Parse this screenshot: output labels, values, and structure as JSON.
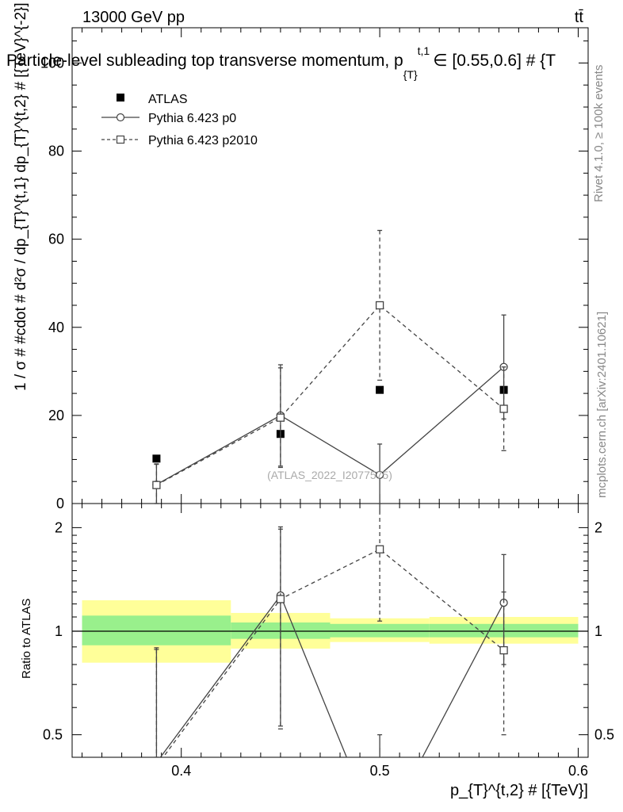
{
  "header": {
    "left_label": "13000 GeV pp",
    "right_label": "tt̄",
    "title": "Particle-level subleading top transverse momentum, p",
    "title_sub": "{T}",
    "title_sup": "t,1",
    "title_tail": "∈ [0.55,0.6] # {T",
    "side_label_top": "Rivet 4.1.0, ≥ 100k events",
    "side_label_bottom": "mcplots.cern.ch [arXiv:2401.10621]",
    "watermark": "(ATLAS_2022_I2077575)"
  },
  "chart_data": [
    {
      "type": "line",
      "panel": "main",
      "ylabel": "1 / σ # #cdot # d²σ / dp_{T}^{t,1} dp_{T}^{t,2} # [{TeV}^{-2}]",
      "ylim": [
        0,
        108
      ],
      "xlim": [
        0.345,
        0.605
      ],
      "yticks": [
        0,
        20,
        40,
        60,
        80,
        100
      ],
      "yticklabels": [
        "0",
        "20",
        "40",
        "60",
        "80",
        "100"
      ],
      "legend": [
        {
          "name": "ATLAS",
          "marker": "filled-square",
          "line": "none"
        },
        {
          "name": "Pythia 6.423 p0",
          "marker": "open-circle",
          "line": "solid"
        },
        {
          "name": "Pythia 6.423 p2010",
          "marker": "open-square",
          "line": "dashed"
        }
      ],
      "series": [
        {
          "name": "ATLAS",
          "x": [
            0.3875,
            0.45,
            0.5,
            0.5625
          ],
          "y": [
            10.2,
            15.8,
            25.8,
            25.8
          ],
          "xerr": [
            0.0375,
            0.025,
            0.025,
            0.0375
          ],
          "yerr": [
            0,
            0,
            0,
            0
          ]
        },
        {
          "name": "Pythia 6.423 p0",
          "x": [
            0.3875,
            0.45,
            0.5,
            0.5625
          ],
          "y": [
            4.3,
            20.0,
            6.5,
            31.0
          ],
          "yerr_lo": [
            4.3,
            11.5,
            6.5,
            11.8
          ],
          "yerr_hi": [
            4.7,
            11.5,
            7.0,
            11.8
          ]
        },
        {
          "name": "Pythia 6.423 p2010",
          "x": [
            0.3875,
            0.45,
            0.5,
            0.5625
          ],
          "y": [
            4.2,
            19.5,
            45.0,
            21.5
          ],
          "yerr_lo": [
            4.2,
            11.3,
            17.0,
            9.5
          ],
          "yerr_hi": [
            4.7,
            11.3,
            17.0,
            9.5
          ]
        }
      ]
    },
    {
      "type": "line",
      "panel": "ratio",
      "ylabel": "Ratio to ATLAS",
      "xlabel": "p_{T}^{t,2} # [{TeV}]",
      "yscale": "log",
      "ylim": [
        0.43,
        2.35
      ],
      "xlim": [
        0.345,
        0.605
      ],
      "xticks": [
        0.4,
        0.5,
        0.6
      ],
      "xticklabels": [
        "0.4",
        "0.5",
        "0.6"
      ],
      "yticks": [
        0.5,
        1,
        2
      ],
      "yticklabels": [
        "0.5",
        "1",
        "2"
      ],
      "bands": [
        {
          "x_lo": 0.35,
          "x_hi": 0.425,
          "inner": [
            0.91,
            1.11
          ],
          "outer": [
            0.81,
            1.23
          ]
        },
        {
          "x_lo": 0.425,
          "x_hi": 0.475,
          "inner": [
            0.95,
            1.06
          ],
          "outer": [
            0.89,
            1.13
          ]
        },
        {
          "x_lo": 0.475,
          "x_hi": 0.525,
          "inner": [
            0.96,
            1.05
          ],
          "outer": [
            0.93,
            1.09
          ]
        },
        {
          "x_lo": 0.525,
          "x_hi": 0.6,
          "inner": [
            0.96,
            1.05
          ],
          "outer": [
            0.92,
            1.1
          ]
        }
      ],
      "band_colors": {
        "inner": "#99f08c",
        "outer": "#ffff99"
      },
      "series": [
        {
          "name": "Pythia 6.423 p0",
          "x": [
            0.3875,
            0.45,
            0.5,
            0.5625
          ],
          "y": [
            0.415,
            1.27,
            0.25,
            1.21
          ],
          "yerr_lo": [
            0.4,
            0.74,
            0.25,
            0.41
          ],
          "yerr_hi": [
            0.48,
            0.74,
            0.25,
            0.46
          ]
        },
        {
          "name": "Pythia 6.423 p2010",
          "x": [
            0.3875,
            0.45,
            0.5,
            0.5625
          ],
          "y": [
            0.405,
            1.24,
            1.73,
            0.88
          ],
          "yerr_lo": [
            0.4,
            0.72,
            0.66,
            0.38
          ],
          "yerr_hi": [
            0.48,
            0.74,
            0.66,
            0.42
          ]
        }
      ]
    }
  ]
}
